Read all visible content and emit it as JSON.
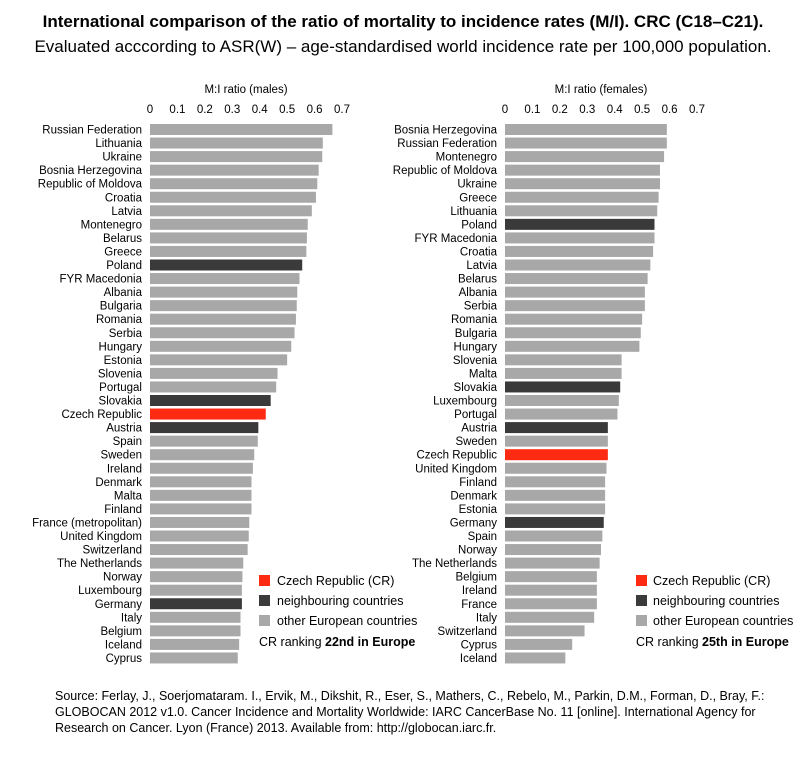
{
  "title": "International comparison of the ratio of mortality to incidence rates (M/I). CRC (C18–C21).",
  "subtitle": "Evaluated acccording to ASR(W) – age-standardised world incidence rate per 100,000 population.",
  "source": "Source: Ferlay, J., Soerjomataram. I., Ervik, M., Dikshit, R., Eser, S., Mathers, C., Rebelo, M., Parkin, D.M., Forman, D., Bray, F.: GLOBOCAN 2012 v1.0. Cancer Incidence and Mortality Worldwide: IARC CancerBase No. 11 [online]. International Agency for Research on Cancer. Lyon (France) 2013. Available from: http://globocan.iarc.fr.",
  "colors": {
    "czech": "#ff2a12",
    "neighbour": "#3a3a3a",
    "other": "#a8a8a8"
  },
  "chart_data": [
    {
      "type": "bar",
      "orientation": "horizontal",
      "xlabel": "M:I ratio (males)",
      "xlim": [
        0,
        0.7
      ],
      "xticks": [
        "0",
        "0.1",
        "0.2",
        "0.3",
        "0.4",
        "0.5",
        "0.6",
        "0.7"
      ],
      "grid": false,
      "legend": {
        "placement": "bottom-right",
        "items": [
          {
            "label": "Czech Republic (CR)",
            "group": "czech"
          },
          {
            "label": "neighbouring countries",
            "group": "neighbour"
          },
          {
            "label": "other European countries",
            "group": "other"
          }
        ]
      },
      "ranking": {
        "prefix": "CR ranking ",
        "bold": "22nd in Europe"
      },
      "categories": [
        "Russian Federation",
        "Lithuania",
        "Ukraine",
        "Bosnia Herzegovina",
        "Republic of Moldova",
        "Croatia",
        "Latvia",
        "Montenegro",
        "Belarus",
        "Greece",
        "Poland",
        "FYR Macedonia",
        "Albania",
        "Bulgaria",
        "Romania",
        "Serbia",
        "Hungary",
        "Estonia",
        "Slovenia",
        "Portugal",
        "Slovakia",
        "Czech Republic",
        "Austria",
        "Spain",
        "Sweden",
        "Ireland",
        "Denmark",
        "Malta",
        "Finland",
        "France (metropolitan)",
        "United Kingdom",
        "Switzerland",
        "The Netherlands",
        "Norway",
        "Luxembourg",
        "Germany",
        "Italy",
        "Belgium",
        "Iceland",
        "Cyprus"
      ],
      "values": [
        0.665,
        0.63,
        0.628,
        0.615,
        0.61,
        0.605,
        0.59,
        0.575,
        0.572,
        0.57,
        0.555,
        0.545,
        0.537,
        0.535,
        0.532,
        0.527,
        0.515,
        0.5,
        0.465,
        0.46,
        0.44,
        0.422,
        0.395,
        0.393,
        0.38,
        0.375,
        0.37,
        0.37,
        0.37,
        0.362,
        0.36,
        0.356,
        0.34,
        0.337,
        0.335,
        0.335,
        0.33,
        0.33,
        0.325,
        0.32
      ],
      "groups": [
        "other",
        "other",
        "other",
        "other",
        "other",
        "other",
        "other",
        "other",
        "other",
        "other",
        "neighbour",
        "other",
        "other",
        "other",
        "other",
        "other",
        "other",
        "other",
        "other",
        "other",
        "neighbour",
        "czech",
        "neighbour",
        "other",
        "other",
        "other",
        "other",
        "other",
        "other",
        "other",
        "other",
        "other",
        "other",
        "other",
        "other",
        "neighbour",
        "other",
        "other",
        "other",
        "other"
      ]
    },
    {
      "type": "bar",
      "orientation": "horizontal",
      "xlabel": "M:I ratio (females)",
      "xlim": [
        0,
        0.7
      ],
      "xticks": [
        "0",
        "0.1",
        "0.2",
        "0.3",
        "0.4",
        "0.5",
        "0.6",
        "0.7"
      ],
      "grid": false,
      "legend": {
        "placement": "bottom-right",
        "items": [
          {
            "label": "Czech Republic (CR)",
            "group": "czech"
          },
          {
            "label": "neighbouring countries",
            "group": "neighbour"
          },
          {
            "label": "other European countries",
            "group": "other"
          }
        ]
      },
      "ranking": {
        "prefix": "CR ranking ",
        "bold": "25th in Europe"
      },
      "categories": [
        "Bosnia Herzegovina",
        "Russian Federation",
        "Montenegro",
        "Republic of Moldova",
        "Ukraine",
        "Greece",
        "Lithuania",
        "Poland",
        "FYR Macedonia",
        "Croatia",
        "Latvia",
        "Belarus",
        "Albania",
        "Serbia",
        "Romania",
        "Bulgaria",
        "Hungary",
        "Slovenia",
        "Malta",
        "Slovakia",
        "Luxembourg",
        "Portugal",
        "Austria",
        "Sweden",
        "Czech Republic",
        "United Kingdom",
        "Finland",
        "Denmark",
        "Estonia",
        "Germany",
        "Spain",
        "Norway",
        "The Netherlands",
        "Belgium",
        "Ireland",
        "France",
        "Italy",
        "Switzerland",
        "Cyprus",
        "Iceland"
      ],
      "values": [
        0.59,
        0.59,
        0.58,
        0.565,
        0.565,
        0.56,
        0.555,
        0.545,
        0.545,
        0.54,
        0.53,
        0.52,
        0.51,
        0.51,
        0.5,
        0.495,
        0.49,
        0.425,
        0.425,
        0.42,
        0.415,
        0.41,
        0.375,
        0.375,
        0.375,
        0.37,
        0.365,
        0.365,
        0.365,
        0.36,
        0.355,
        0.35,
        0.345,
        0.335,
        0.335,
        0.335,
        0.325,
        0.29,
        0.245,
        0.22
      ],
      "groups": [
        "other",
        "other",
        "other",
        "other",
        "other",
        "other",
        "other",
        "neighbour",
        "other",
        "other",
        "other",
        "other",
        "other",
        "other",
        "other",
        "other",
        "other",
        "other",
        "other",
        "neighbour",
        "other",
        "other",
        "neighbour",
        "other",
        "czech",
        "other",
        "other",
        "other",
        "other",
        "neighbour",
        "other",
        "other",
        "other",
        "other",
        "other",
        "other",
        "other",
        "other",
        "other",
        "other"
      ]
    }
  ]
}
